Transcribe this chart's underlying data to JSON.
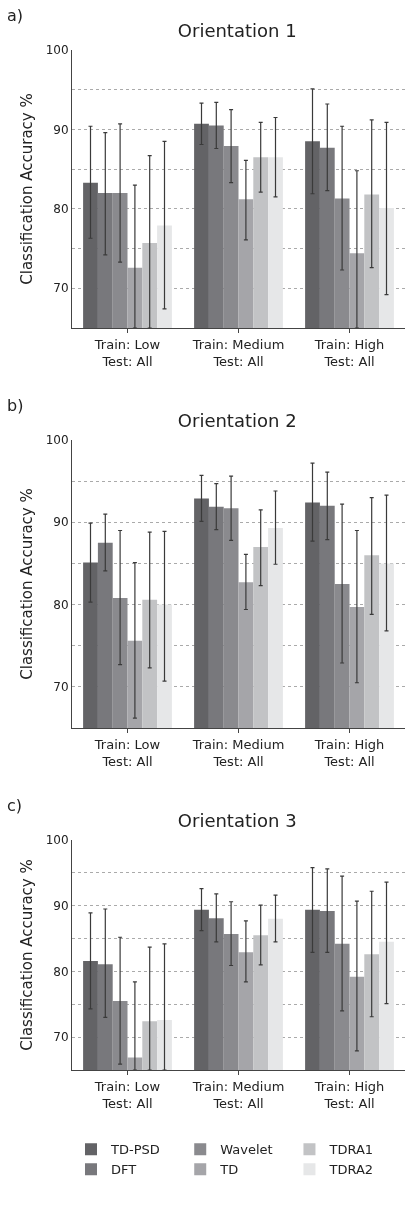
{
  "chart_data": [
    {
      "type": "bar",
      "title": "Orientation 1",
      "ylabel": "Classification Accuracy %",
      "annotations": [
        "a)"
      ],
      "categories": [
        "Train: Low\nTest: All",
        "Train: Medium\nTest: All",
        "Train: High\nTest: All"
      ],
      "ylim": [
        65,
        100
      ],
      "yticks": [
        70,
        {
          "value": 75,
          "label": null
        },
        80,
        {
          "value": 85,
          "label": null
        },
        90,
        {
          "value": 95,
          "label": null
        },
        100
      ],
      "grid": "y",
      "legend": false,
      "series": [
        {
          "color": "#636366",
          "values": [
            83.3,
            90.7,
            88.5
          ],
          "errors": [
            [
              76.3,
              90.4
            ],
            [
              88.1,
              93.3
            ],
            [
              81.9,
              95.1
            ]
          ]
        },
        {
          "color": "#78787c",
          "values": [
            82.0,
            90.5,
            87.7
          ],
          "errors": [
            [
              74.2,
              89.6
            ],
            [
              87.6,
              93.4
            ],
            [
              82.3,
              93.2
            ]
          ]
        },
        {
          "color": "#8a8a8e",
          "values": [
            82.0,
            87.9,
            81.3
          ],
          "errors": [
            [
              73.3,
              90.7
            ],
            [
              83.3,
              92.5
            ],
            [
              72.3,
              90.4
            ]
          ]
        },
        {
          "color": "#a5a5a9",
          "values": [
            72.6,
            81.2,
            74.4
          ],
          "errors": [
            [
              65,
              83.0
            ],
            [
              76.1,
              86.1
            ],
            [
              65,
              84.8
            ]
          ]
        },
        {
          "color": "#c2c3c5",
          "values": [
            75.7,
            86.5,
            81.8
          ],
          "errors": [
            [
              65,
              86.7
            ],
            [
              82.1,
              90.9
            ],
            [
              72.6,
              91.2
            ]
          ]
        },
        {
          "color": "#e6e7e8",
          "values": [
            77.9,
            86.5,
            80.1
          ],
          "errors": [
            [
              67.4,
              88.5
            ],
            [
              81.5,
              91.5
            ],
            [
              69.2,
              90.9
            ]
          ]
        }
      ]
    },
    {
      "type": "bar",
      "title": "Orientation 2",
      "ylabel": "Classification Accuracy %",
      "annotations": [
        "b)"
      ],
      "categories": [
        "Train: Low\nTest: All",
        "Train: Medium\nTest: All",
        "Train: High\nTest: All"
      ],
      "ylim": [
        65,
        100
      ],
      "yticks": [
        70,
        {
          "value": 75,
          "label": null
        },
        80,
        {
          "value": 85,
          "label": null
        },
        90,
        {
          "value": 95,
          "label": null
        },
        100
      ],
      "grid": "y",
      "legend": false,
      "series": [
        {
          "color": "#636366",
          "values": [
            85.1,
            92.9,
            92.4
          ],
          "errors": [
            [
              80.3,
              89.9
            ],
            [
              90.1,
              95.7
            ],
            [
              87.7,
              97.2
            ]
          ]
        },
        {
          "color": "#78787c",
          "values": [
            87.5,
            91.9,
            92.0
          ],
          "errors": [
            [
              84.1,
              91.0
            ],
            [
              89.1,
              94.7
            ],
            [
              87.9,
              96.1
            ]
          ]
        },
        {
          "color": "#8a8a8e",
          "values": [
            80.8,
            91.7,
            82.5
          ],
          "errors": [
            [
              72.7,
              89.0
            ],
            [
              87.8,
              95.6
            ],
            [
              72.9,
              92.2
            ]
          ]
        },
        {
          "color": "#a5a5a9",
          "values": [
            75.6,
            82.7,
            79.7
          ],
          "errors": [
            [
              66.2,
              85.1
            ],
            [
              79.4,
              86.1
            ],
            [
              70.5,
              89.0
            ]
          ]
        },
        {
          "color": "#c2c3c5",
          "values": [
            80.6,
            87.0,
            86.0
          ],
          "errors": [
            [
              72.3,
              88.8
            ],
            [
              82.3,
              91.5
            ],
            [
              78.8,
              93.0
            ]
          ]
        },
        {
          "color": "#e6e7e8",
          "values": [
            80.0,
            89.3,
            85.0
          ],
          "errors": [
            [
              70.7,
              88.9
            ],
            [
              84.9,
              93.8
            ],
            [
              76.8,
              93.3
            ]
          ]
        }
      ]
    },
    {
      "type": "bar",
      "title": "Orientation 3",
      "ylabel": "Classification Accuracy %",
      "annotations": [
        "c)"
      ],
      "categories": [
        "Train: Low\nTest: All",
        "Train: Medium\nTest: All",
        "Train: High\nTest: All"
      ],
      "ylim": [
        65,
        100
      ],
      "yticks": [
        70,
        {
          "value": 75,
          "label": null
        },
        80,
        {
          "value": 85,
          "label": null
        },
        90,
        {
          "value": 95,
          "label": null
        },
        100
      ],
      "grid": "y",
      "legend": "bottom",
      "series": [
        {
          "name": "TD-PSD",
          "color": "#636366",
          "values": [
            81.6,
            89.4,
            89.4
          ],
          "errors": [
            [
              74.3,
              88.9
            ],
            [
              86.2,
              92.6
            ],
            [
              82.9,
              95.8
            ]
          ]
        },
        {
          "name": "DFT",
          "color": "#78787c",
          "values": [
            81.1,
            88.1,
            89.2
          ],
          "errors": [
            [
              73.0,
              89.5
            ],
            [
              84.5,
              91.8
            ],
            [
              82.9,
              95.6
            ]
          ]
        },
        {
          "name": "Wavelet",
          "color": "#8a8a8e",
          "values": [
            75.5,
            85.7,
            84.2
          ],
          "errors": [
            [
              65.9,
              85.2
            ],
            [
              80.9,
              90.6
            ],
            [
              74.0,
              94.5
            ]
          ]
        },
        {
          "name": "TD",
          "color": "#a5a5a9",
          "values": [
            66.9,
            82.9,
            79.2
          ],
          "errors": [
            [
              65,
              78.4
            ],
            [
              78.4,
              87.7
            ],
            [
              67.9,
              90.7
            ]
          ]
        },
        {
          "name": "TDRA1",
          "color": "#c2c3c5",
          "values": [
            72.4,
            85.5,
            82.6
          ],
          "errors": [
            [
              65,
              83.7
            ],
            [
              81.0,
              90.1
            ],
            [
              73.1,
              92.2
            ]
          ]
        },
        {
          "name": "TDRA2",
          "color": "#e6e7e8",
          "values": [
            72.6,
            88.0,
            84.5
          ],
          "errors": [
            [
              65,
              84.2
            ],
            [
              84.5,
              91.6
            ],
            [
              75.1,
              93.6
            ]
          ]
        }
      ]
    }
  ]
}
